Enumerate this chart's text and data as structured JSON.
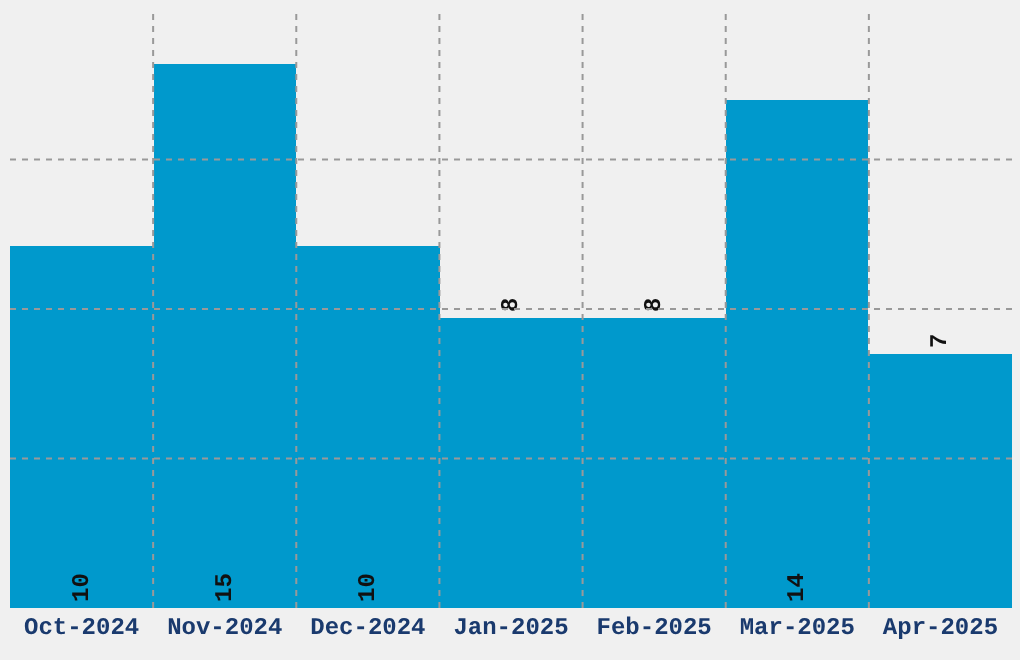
{
  "chart_data": {
    "type": "bar",
    "categories": [
      "Oct-2024",
      "Nov-2024",
      "Dec-2024",
      "Jan-2025",
      "Feb-2025",
      "Mar-2025",
      "Apr-2025"
    ],
    "values": [
      10,
      15,
      10,
      8,
      8,
      14,
      7
    ],
    "color": "#0099cc",
    "data_labels": true,
    "ylim": [
      0,
      16.5
    ],
    "tick_labels": "x",
    "grid": true
  }
}
